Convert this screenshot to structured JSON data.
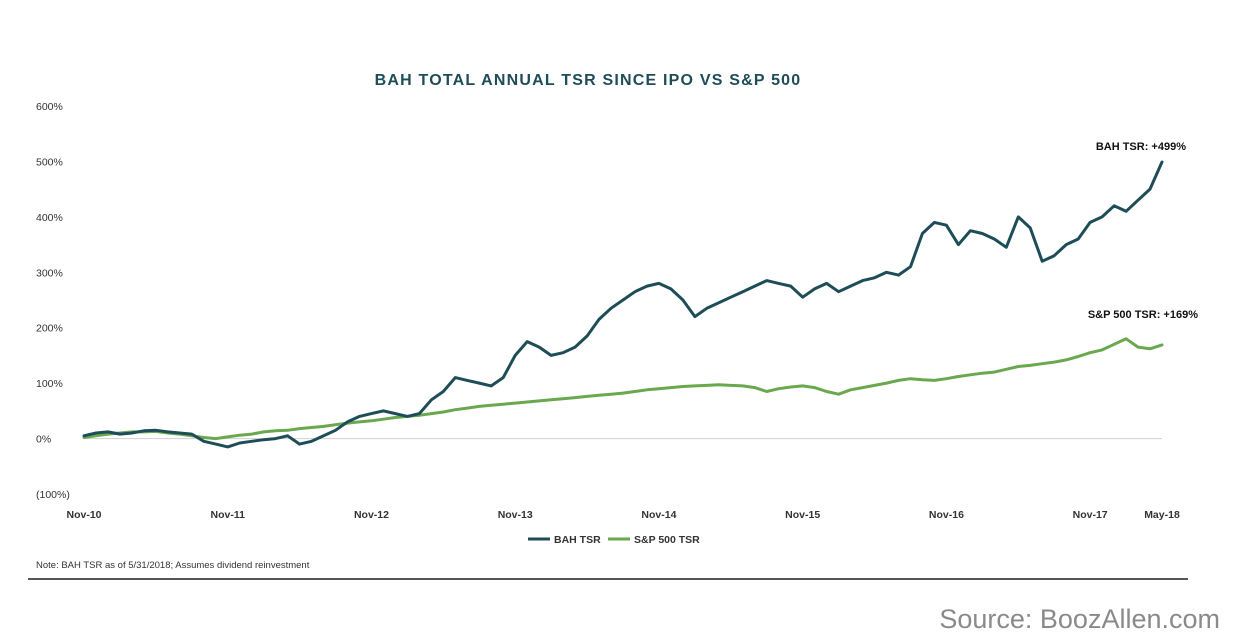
{
  "chart_data": {
    "type": "line",
    "title": "BAH TOTAL ANNUAL TSR SINCE IPO VS S&P 500",
    "xlabel": "",
    "ylabel": "",
    "x_tick_labels": [
      "Nov-10",
      "Nov-11",
      "Nov-12",
      "Nov-13",
      "Nov-14",
      "Nov-15",
      "Nov-16",
      "Nov-17",
      "May-18"
    ],
    "x_tick_positions": [
      0,
      12,
      24,
      36,
      48,
      60,
      72,
      84,
      90
    ],
    "y_tick_labels": [
      "(100%)",
      "0%",
      "100%",
      "200%",
      "300%",
      "400%",
      "500%",
      "600%"
    ],
    "y_tick_values": [
      -100,
      0,
      100,
      200,
      300,
      400,
      500,
      600
    ],
    "ylim": [
      -100,
      600
    ],
    "x_unit": "months since Nov-10",
    "legend_position": "bottom-center",
    "grid": false,
    "series": [
      {
        "name": "BAH TSR",
        "color": "#1e4d57",
        "x": [
          0,
          1,
          2,
          3,
          4,
          5,
          6,
          7,
          8,
          9,
          10,
          11,
          12,
          13,
          14,
          15,
          16,
          17,
          18,
          19,
          20,
          21,
          22,
          23,
          24,
          25,
          26,
          27,
          28,
          29,
          30,
          31,
          32,
          33,
          34,
          35,
          36,
          37,
          38,
          39,
          40,
          41,
          42,
          43,
          44,
          45,
          46,
          47,
          48,
          49,
          50,
          51,
          52,
          53,
          54,
          55,
          56,
          57,
          58,
          59,
          60,
          61,
          62,
          63,
          64,
          65,
          66,
          67,
          68,
          69,
          70,
          71,
          72,
          73,
          74,
          75,
          76,
          77,
          78,
          79,
          80,
          81,
          82,
          83,
          84,
          85,
          86,
          87,
          88,
          89,
          90
        ],
        "values": [
          5,
          10,
          12,
          8,
          10,
          14,
          15,
          12,
          10,
          8,
          -5,
          -10,
          -15,
          -8,
          -5,
          -2,
          0,
          5,
          -10,
          -5,
          5,
          15,
          30,
          40,
          45,
          50,
          45,
          40,
          45,
          70,
          85,
          110,
          105,
          100,
          95,
          110,
          150,
          175,
          165,
          150,
          155,
          165,
          185,
          215,
          235,
          250,
          265,
          275,
          280,
          270,
          250,
          220,
          235,
          245,
          255,
          265,
          275,
          285,
          280,
          275,
          255,
          270,
          280,
          265,
          275,
          285,
          290,
          300,
          295,
          310,
          370,
          390,
          385,
          350,
          375,
          370,
          360,
          345,
          400,
          380,
          320,
          330,
          350,
          360,
          390,
          400,
          420,
          410,
          430,
          450,
          499
        ]
      },
      {
        "name": "S&P 500 TSR",
        "color": "#6aa84f",
        "x": [
          0,
          1,
          2,
          3,
          4,
          5,
          6,
          7,
          8,
          9,
          10,
          11,
          12,
          13,
          14,
          15,
          16,
          17,
          18,
          19,
          20,
          21,
          22,
          23,
          24,
          25,
          26,
          27,
          28,
          29,
          30,
          31,
          32,
          33,
          34,
          35,
          36,
          37,
          38,
          39,
          40,
          41,
          42,
          43,
          44,
          45,
          46,
          47,
          48,
          49,
          50,
          51,
          52,
          53,
          54,
          55,
          56,
          57,
          58,
          59,
          60,
          61,
          62,
          63,
          64,
          65,
          66,
          67,
          68,
          69,
          70,
          71,
          72,
          73,
          74,
          75,
          76,
          77,
          78,
          79,
          80,
          81,
          82,
          83,
          84,
          85,
          86,
          87,
          88,
          89,
          90
        ],
        "values": [
          2,
          5,
          8,
          10,
          12,
          12,
          13,
          10,
          8,
          5,
          2,
          0,
          3,
          6,
          8,
          12,
          14,
          15,
          18,
          20,
          22,
          25,
          28,
          30,
          32,
          35,
          38,
          40,
          42,
          45,
          48,
          52,
          55,
          58,
          60,
          62,
          64,
          66,
          68,
          70,
          72,
          74,
          76,
          78,
          80,
          82,
          85,
          88,
          90,
          92,
          94,
          95,
          96,
          97,
          96,
          95,
          92,
          85,
          90,
          93,
          95,
          92,
          85,
          80,
          88,
          92,
          96,
          100,
          105,
          108,
          106,
          105,
          108,
          112,
          115,
          118,
          120,
          125,
          130,
          132,
          135,
          138,
          142,
          148,
          155,
          160,
          170,
          180,
          165,
          162,
          169
        ]
      }
    ],
    "annotations": [
      {
        "label": "BAH TSR: +499%",
        "series": "BAH TSR"
      },
      {
        "label": "S&P 500 TSR: +169%",
        "series": "S&P 500 TSR"
      }
    ]
  },
  "note": "Note: BAH TSR as of 5/31/2018; Assumes dividend reinvestment",
  "source": "Source: BoozAllen.com"
}
